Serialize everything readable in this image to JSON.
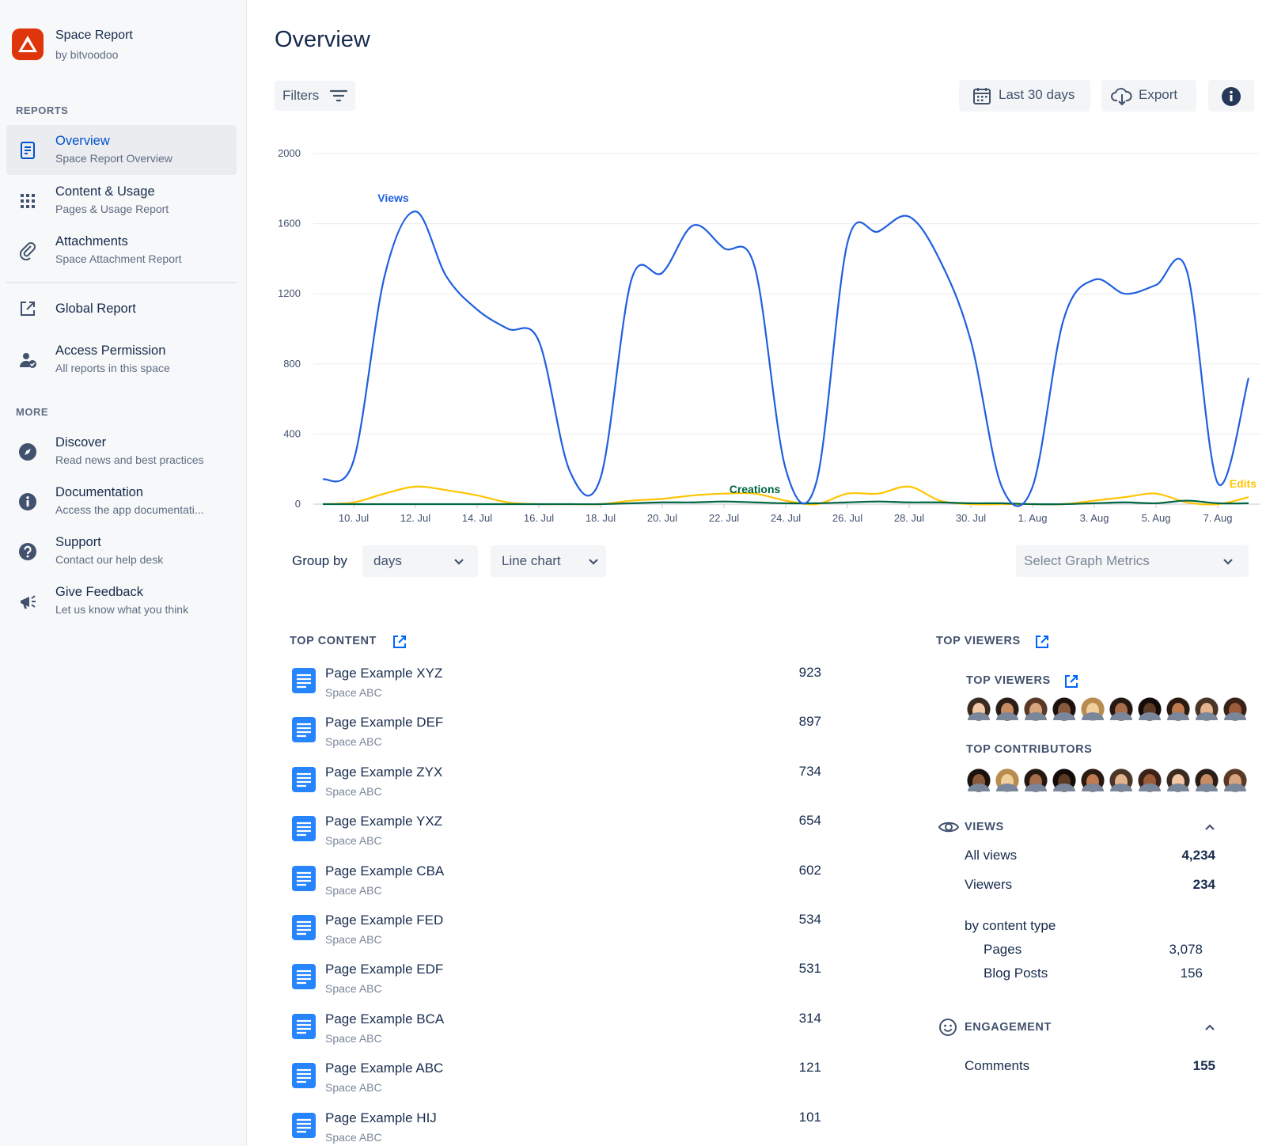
{
  "sidebar": {
    "app": {
      "title": "Space Report",
      "subtitle": "by bitvoodoo"
    },
    "reports_heading": "REPORTS",
    "reports": [
      {
        "title": "Overview",
        "subtitle": "Space Report Overview"
      },
      {
        "title": "Content & Usage",
        "subtitle": "Pages & Usage Report"
      },
      {
        "title": "Attachments",
        "subtitle": "Space Attachment Report"
      },
      {
        "title": "Global Report"
      },
      {
        "title": "Access Permission",
        "subtitle": "All reports in this space"
      }
    ],
    "more_heading": "MORE",
    "more": [
      {
        "title": "Discover",
        "subtitle": "Read news and best practices"
      },
      {
        "title": "Documentation",
        "subtitle": "Access the app documentati..."
      },
      {
        "title": "Support",
        "subtitle": "Contact our help desk"
      },
      {
        "title": "Give Feedback",
        "subtitle": "Let us know what you think"
      }
    ]
  },
  "header": {
    "title": "Overview",
    "filters": "Filters",
    "date_range": "Last 30 days",
    "export": "Export"
  },
  "chart_data": {
    "type": "line",
    "categories": [
      null,
      "10. Jul",
      null,
      "12. Jul",
      null,
      "14. Jul",
      null,
      "16. Jul",
      null,
      "18. Jul",
      null,
      "20. Jul",
      null,
      "22. Jul",
      null,
      "24. Jul",
      null,
      "26. Jul",
      null,
      "28. Jul",
      null,
      "30. Jul",
      null,
      "1. Aug",
      null,
      "3. Aug",
      null,
      "5. Aug",
      null,
      "7. Aug",
      null
    ],
    "series": [
      {
        "name": "Views",
        "color": "#1f5fe0",
        "values": [
          140,
          250,
          1300,
          1670,
          1300,
          1110,
          1000,
          930,
          190,
          150,
          1280,
          1320,
          1590,
          1460,
          1350,
          200,
          130,
          1490,
          1555,
          1640,
          1390,
          930,
          100,
          100,
          1050,
          1280,
          1200,
          1250,
          1330,
          120,
          720
        ]
      },
      {
        "name": "Creations",
        "color": "#006644",
        "values": [
          0,
          0,
          0,
          0,
          0,
          0,
          0,
          0,
          0,
          0,
          5,
          10,
          10,
          15,
          10,
          5,
          5,
          10,
          15,
          10,
          10,
          5,
          5,
          0,
          0,
          5,
          10,
          5,
          20,
          5,
          5
        ]
      },
      {
        "name": "Edits",
        "color": "#ffc400",
        "values": [
          0,
          10,
          60,
          100,
          80,
          50,
          10,
          0,
          0,
          0,
          20,
          30,
          50,
          60,
          60,
          20,
          0,
          60,
          60,
          100,
          20,
          0,
          0,
          0,
          0,
          20,
          40,
          60,
          10,
          0,
          40
        ]
      }
    ],
    "ylim": [
      0,
      2000
    ],
    "yticks": [
      0,
      400,
      800,
      1200,
      1600,
      2000
    ],
    "grid": true
  },
  "controls": {
    "group_by_label": "Group by",
    "group_by": "days",
    "chart_type": "Line chart",
    "metrics_placeholder": "Select Graph Metrics"
  },
  "top_content": {
    "title": "TOP CONTENT",
    "rows": [
      {
        "title": "Page Example XYZ",
        "space": "Space ABC",
        "views": 923
      },
      {
        "title": "Page Example DEF",
        "space": "Space ABC",
        "views": 897
      },
      {
        "title": "Page Example ZYX",
        "space": "Space ABC",
        "views": 734
      },
      {
        "title": "Page Example YXZ",
        "space": "Space ABC",
        "views": 654
      },
      {
        "title": "Page Example CBA",
        "space": "Space ABC",
        "views": 602
      },
      {
        "title": "Page Example FED",
        "space": "Space ABC",
        "views": 534
      },
      {
        "title": "Page Example EDF",
        "space": "Space ABC",
        "views": 531
      },
      {
        "title": "Page Example BCA",
        "space": "Space ABC",
        "views": 314
      },
      {
        "title": "Page Example ABC",
        "space": "Space ABC",
        "views": 121
      },
      {
        "title": "Page Example HIJ",
        "space": "Space ABC",
        "views": 101
      }
    ]
  },
  "top_viewers": {
    "title": "TOP VIEWERS",
    "viewers_title": "TOP VIEWERS",
    "contributors_title": "TOP CONTRIBUTORS",
    "views": {
      "title": "VIEWS",
      "all_views_label": "All views",
      "all_views": "4,234",
      "viewers_label": "Viewers",
      "viewers": "234",
      "by_type_label": "by content type",
      "pages_label": "Pages",
      "pages": "3,078",
      "blog_label": "Blog Posts",
      "blog": "156"
    },
    "engagement": {
      "title": "ENGAGEMENT",
      "comments_label": "Comments",
      "comments": "155"
    }
  }
}
